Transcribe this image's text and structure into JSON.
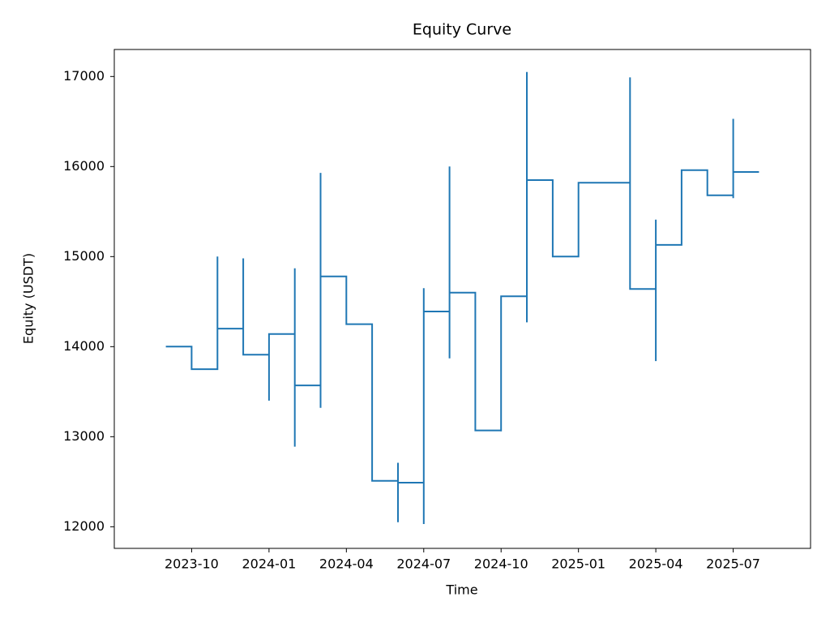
{
  "chart_data": {
    "type": "line",
    "title": "Equity Curve",
    "xlabel": "Time",
    "ylabel": "Equity (USDT)",
    "color": "#1f77b4",
    "x": [
      "2023-09",
      "2023-10",
      "2023-10",
      "2023-11",
      "2023-11",
      "2023-11",
      "2023-11",
      "2023-11",
      "2023-11",
      "2023-12",
      "2023-12",
      "2023-12",
      "2023-12",
      "2023-12",
      "2023-12",
      "2023-12",
      "2023-12",
      "2024-01",
      "2024-01",
      "2024-01",
      "2024-02",
      "2024-02",
      "2024-02",
      "2024-02",
      "2024-02",
      "2024-02",
      "2024-02",
      "2024-02",
      "2024-03",
      "2024-03",
      "2024-03",
      "2024-03",
      "2024-03",
      "2024-03",
      "2024-03",
      "2024-03",
      "2024-03",
      "2024-04",
      "2024-04",
      "2024-04",
      "2024-05",
      "2024-05",
      "2024-05",
      "2024-05",
      "2024-05",
      "2024-05",
      "2024-06",
      "2024-06",
      "2024-06",
      "2024-06",
      "2024-07",
      "2024-07",
      "2024-07",
      "2024-07",
      "2024-07",
      "2024-08",
      "2024-08",
      "2024-08",
      "2024-08",
      "2024-08",
      "2024-08",
      "2024-08",
      "2024-09",
      "2024-09",
      "2024-09",
      "2024-09",
      "2024-10",
      "2024-10",
      "2024-10",
      "2024-11",
      "2024-11",
      "2024-11",
      "2024-11",
      "2024-11",
      "2024-11",
      "2024-11",
      "2024-11",
      "2024-11",
      "2024-12",
      "2024-12",
      "2024-12",
      "2024-12",
      "2025-01",
      "2025-01",
      "2025-03",
      "2025-03",
      "2025-03",
      "2025-03",
      "2025-03",
      "2025-03",
      "2025-03",
      "2025-03",
      "2025-03",
      "2025-04",
      "2025-04",
      "2025-04",
      "2025-04",
      "2025-04",
      "2025-04",
      "2025-04",
      "2025-04",
      "2025-05",
      "2025-05",
      "2025-06",
      "2025-06",
      "2025-07",
      "2025-07",
      "2025-07",
      "2025-07",
      "2025-07",
      "2025-08"
    ],
    "values": [
      14000,
      14000,
      13750,
      13750,
      14500,
      13950,
      14750,
      15000,
      14200,
      14200,
      14980,
      14720,
      14450,
      14960,
      14180,
      14420,
      13910,
      13910,
      13400,
      14140,
      14140,
      13620,
      12890,
      13370,
      14870,
      14340,
      13830,
      13570,
      13570,
      13320,
      15930,
      15640,
      15080,
      14800,
      14530,
      15330,
      14780,
      14780,
      14510,
      14250,
      14250,
      13730,
      12510,
      13210,
      12740,
      12510,
      12510,
      12710,
      12050,
      12490,
      12490,
      12030,
      14650,
      13150,
      14390,
      14390,
      14130,
      13870,
      16000,
      15150,
      14870,
      14600,
      14600,
      14070,
      13560,
      13070,
      13070,
      13060,
      14560,
      14560,
      14270,
      15910,
      15630,
      16190,
      15320,
      17050,
      15300,
      15850,
      15850,
      15560,
      15270,
      15000,
      15000,
      15820,
      15820,
      16700,
      15870,
      16990,
      16370,
      16070,
      16960,
      15760,
      14640,
      14640,
      13840,
      14630,
      14340,
      15150,
      15410,
      14580,
      15130,
      15130,
      15960,
      15960,
      15680,
      15680,
      16530,
      15650,
      16240,
      15940,
      15940
    ],
    "xlim": [
      "2023-07",
      "2025-10"
    ],
    "xticks": [
      "2023-10",
      "2024-01",
      "2024-04",
      "2024-07",
      "2024-10",
      "2025-01",
      "2025-04",
      "2025-07"
    ],
    "ylim": [
      11760,
      17300
    ],
    "yticks": [
      12000,
      13000,
      14000,
      15000,
      16000,
      17000
    ]
  }
}
